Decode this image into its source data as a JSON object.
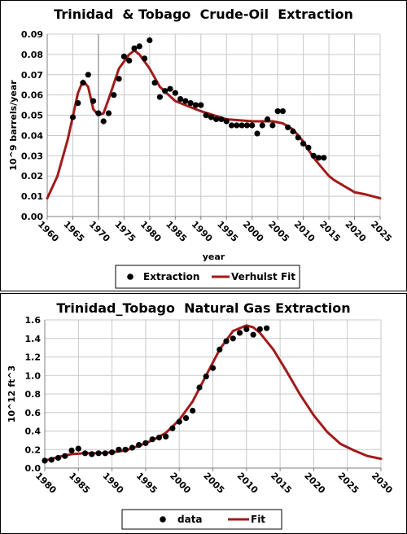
{
  "colors": {
    "fit": "#a31a1a",
    "data": "#000000",
    "grid": "#c8c8c8",
    "axis": "#808080"
  },
  "chart_data": [
    {
      "type": "scatter",
      "title": "Trinidad  & Tobago  Crude-Oil  Extraction",
      "xlabel": "year",
      "ylabel": "10^9 barrels/year",
      "xlim": [
        1960,
        2025
      ],
      "ylim": [
        0,
        0.09
      ],
      "yticks": [
        "0.00",
        "0.01",
        "0.02",
        "0.03",
        "0.04",
        "0.05",
        "0.06",
        "0.07",
        "0.08",
        "0.09"
      ],
      "xticks": [
        "1960",
        "1965",
        "1970",
        "1975",
        "1980",
        "1985",
        "1990",
        "1995",
        "2000",
        "2005",
        "2010",
        "2015",
        "2020",
        "2025"
      ],
      "grid": true,
      "legend_position": "bottom",
      "series": [
        {
          "name": "Extraction",
          "marker": "point",
          "x": [
            1965,
            1966,
            1967,
            1968,
            1969,
            1970,
            1971,
            1972,
            1973,
            1974,
            1975,
            1976,
            1977,
            1978,
            1979,
            1980,
            1981,
            1982,
            1983,
            1984,
            1985,
            1986,
            1987,
            1988,
            1989,
            1990,
            1991,
            1992,
            1993,
            1994,
            1995,
            1996,
            1997,
            1998,
            1999,
            2000,
            2001,
            2002,
            2003,
            2004,
            2005,
            2006,
            2007,
            2008,
            2009,
            2010,
            2011,
            2012,
            2013,
            2014
          ],
          "y": [
            0.049,
            0.056,
            0.066,
            0.07,
            0.057,
            0.051,
            0.047,
            0.051,
            0.06,
            0.068,
            0.079,
            0.077,
            0.083,
            0.084,
            0.078,
            0.087,
            0.066,
            0.059,
            0.062,
            0.063,
            0.061,
            0.058,
            0.057,
            0.056,
            0.055,
            0.055,
            0.05,
            0.049,
            0.048,
            0.048,
            0.047,
            0.045,
            0.045,
            0.045,
            0.045,
            0.045,
            0.041,
            0.045,
            0.048,
            0.045,
            0.052,
            0.052,
            0.044,
            0.042,
            0.039,
            0.036,
            0.034,
            0.03,
            0.029,
            0.029
          ]
        },
        {
          "name": "Verhulst Fit",
          "marker": "line",
          "x": [
            1960,
            1962,
            1964,
            1966,
            1967,
            1968,
            1969,
            1970,
            1971,
            1972,
            1974,
            1976,
            1977,
            1978,
            1980,
            1982,
            1985,
            1990,
            1995,
            2000,
            2004,
            2006,
            2008,
            2010,
            2012,
            2014,
            2015,
            2016,
            2018,
            2020,
            2022,
            2025
          ],
          "y": [
            0.009,
            0.02,
            0.038,
            0.061,
            0.067,
            0.064,
            0.053,
            0.05,
            0.051,
            0.058,
            0.073,
            0.08,
            0.082,
            0.08,
            0.073,
            0.064,
            0.057,
            0.052,
            0.048,
            0.047,
            0.047,
            0.046,
            0.043,
            0.037,
            0.029,
            0.023,
            0.02,
            0.018,
            0.015,
            0.012,
            0.011,
            0.009
          ]
        }
      ]
    },
    {
      "type": "scatter",
      "title": "Trinidad_Tobago  Natural Gas Extraction",
      "xlabel": "",
      "ylabel": "10^12 ft^3",
      "xlim": [
        1980,
        2030
      ],
      "ylim": [
        0,
        1.6
      ],
      "yticks": [
        "0.0",
        "0.2",
        "0.4",
        "0.6",
        "0.8",
        "1.0",
        "1.2",
        "1.4",
        "1.6"
      ],
      "xticks": [
        "1980",
        "1985",
        "1990",
        "1995",
        "2000",
        "2005",
        "2010",
        "2015",
        "2020",
        "2025",
        "2030"
      ],
      "grid": true,
      "legend_position": "bottom",
      "series": [
        {
          "name": "data",
          "marker": "point",
          "x": [
            1980,
            1981,
            1982,
            1983,
            1984,
            1985,
            1986,
            1987,
            1988,
            1989,
            1990,
            1991,
            1992,
            1993,
            1994,
            1995,
            1996,
            1997,
            1998,
            1999,
            2000,
            2001,
            2002,
            2003,
            2004,
            2005,
            2006,
            2007,
            2008,
            2009,
            2010,
            2011,
            2012,
            2013
          ],
          "y": [
            0.08,
            0.09,
            0.11,
            0.13,
            0.19,
            0.21,
            0.16,
            0.15,
            0.16,
            0.16,
            0.17,
            0.2,
            0.2,
            0.22,
            0.25,
            0.27,
            0.31,
            0.33,
            0.34,
            0.43,
            0.5,
            0.54,
            0.62,
            0.87,
            0.99,
            1.08,
            1.28,
            1.37,
            1.4,
            1.46,
            1.5,
            1.44,
            1.5,
            1.51
          ]
        },
        {
          "name": "Fit",
          "marker": "line",
          "x": [
            1980,
            1982,
            1984,
            1986,
            1988,
            1990,
            1992,
            1994,
            1996,
            1998,
            2000,
            2002,
            2004,
            2006,
            2008,
            2010,
            2011,
            2012,
            2014,
            2016,
            2018,
            2020,
            2022,
            2024,
            2026,
            2028,
            2030
          ],
          "y": [
            0.08,
            0.12,
            0.15,
            0.16,
            0.16,
            0.17,
            0.19,
            0.24,
            0.3,
            0.38,
            0.52,
            0.72,
            1.0,
            1.28,
            1.48,
            1.54,
            1.52,
            1.46,
            1.28,
            1.04,
            0.79,
            0.57,
            0.39,
            0.26,
            0.19,
            0.13,
            0.1
          ]
        }
      ]
    }
  ]
}
